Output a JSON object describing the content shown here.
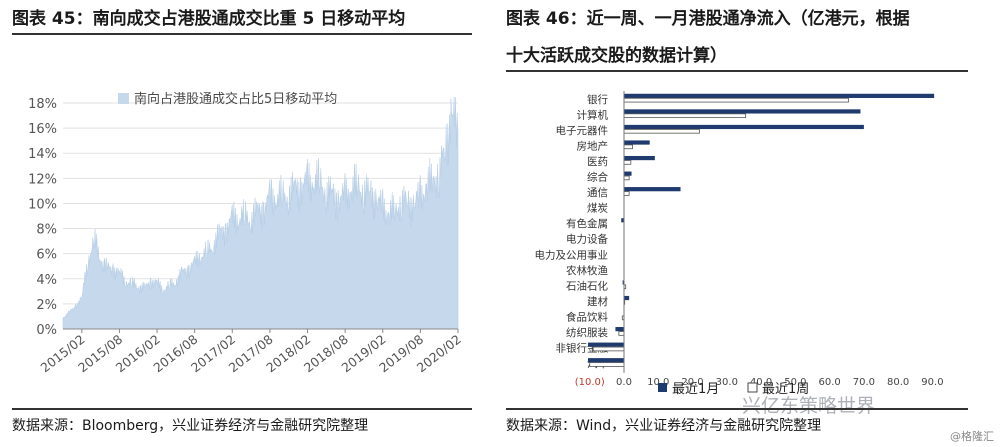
{
  "left": {
    "title": "图表 45：南向成交占港股通成交比重 5 日移动平均",
    "source": "数据来源：Bloomberg，兴业证券经济与金融研究院整理"
  },
  "right": {
    "title_line1": "图表 46：近一周、一月港股通净流入（亿港元，根据",
    "title_line2": "十大活跃成交股的数据计算）",
    "source": "数据来源：Wind，兴业证券经济与金融研究院整理"
  },
  "watermark": "兴亿东策略世界",
  "watermark2": "@格隆汇",
  "chart_data": [
    {
      "type": "area",
      "legend": "南向占港股通成交占比5日移动平均",
      "ylim": [
        0,
        18
      ],
      "y_ticks": [
        "0%",
        "2%",
        "4%",
        "6%",
        "8%",
        "10%",
        "12%",
        "14%",
        "16%",
        "18%"
      ],
      "x_ticks": [
        "2015/02",
        "2015/08",
        "2016/02",
        "2016/08",
        "2017/02",
        "2017/08",
        "2018/02",
        "2018/08",
        "2019/02",
        "2019/08",
        "2020/02"
      ],
      "series_color": "#c5d8ec",
      "approx_monthly": [
        {
          "x": "2014/11",
          "y": 0.9
        },
        {
          "x": "2014/12",
          "y": 1.3
        },
        {
          "x": "2015/01",
          "y": 1.8
        },
        {
          "x": "2015/02",
          "y": 2.5
        },
        {
          "x": "2015/03",
          "y": 5.5
        },
        {
          "x": "2015/04",
          "y": 7.1
        },
        {
          "x": "2015/05",
          "y": 5.5
        },
        {
          "x": "2015/06",
          "y": 4.8
        },
        {
          "x": "2015/07",
          "y": 4.8
        },
        {
          "x": "2015/08",
          "y": 4.4
        },
        {
          "x": "2015/09",
          "y": 3.8
        },
        {
          "x": "2015/10",
          "y": 3.6
        },
        {
          "x": "2015/11",
          "y": 3.4
        },
        {
          "x": "2015/12",
          "y": 3.2
        },
        {
          "x": "2016/01",
          "y": 3.8
        },
        {
          "x": "2016/02",
          "y": 3.6
        },
        {
          "x": "2016/03",
          "y": 3.2
        },
        {
          "x": "2016/04",
          "y": 3.4
        },
        {
          "x": "2016/05",
          "y": 3.8
        },
        {
          "x": "2016/06",
          "y": 4.4
        },
        {
          "x": "2016/07",
          "y": 4.8
        },
        {
          "x": "2016/08",
          "y": 5.2
        },
        {
          "x": "2016/09",
          "y": 6.0
        },
        {
          "x": "2016/10",
          "y": 6.0
        },
        {
          "x": "2016/11",
          "y": 6.8
        },
        {
          "x": "2016/12",
          "y": 7.5
        },
        {
          "x": "2017/01",
          "y": 8.0
        },
        {
          "x": "2017/02",
          "y": 8.7
        },
        {
          "x": "2017/03",
          "y": 9.0
        },
        {
          "x": "2017/04",
          "y": 8.8
        },
        {
          "x": "2017/05",
          "y": 8.9
        },
        {
          "x": "2017/06",
          "y": 9.2
        },
        {
          "x": "2017/07",
          "y": 9.6
        },
        {
          "x": "2017/08",
          "y": 10.3
        },
        {
          "x": "2017/09",
          "y": 10.6
        },
        {
          "x": "2017/10",
          "y": 10.4
        },
        {
          "x": "2017/11",
          "y": 10.8
        },
        {
          "x": "2017/12",
          "y": 11.0
        },
        {
          "x": "2018/01",
          "y": 11.3
        },
        {
          "x": "2018/02",
          "y": 11.6
        },
        {
          "x": "2018/03",
          "y": 11.8
        },
        {
          "x": "2018/04",
          "y": 11.6
        },
        {
          "x": "2018/05",
          "y": 11.0
        },
        {
          "x": "2018/06",
          "y": 10.6
        },
        {
          "x": "2018/07",
          "y": 10.2
        },
        {
          "x": "2018/08",
          "y": 10.6
        },
        {
          "x": "2018/09",
          "y": 11.2
        },
        {
          "x": "2018/10",
          "y": 11.4
        },
        {
          "x": "2018/11",
          "y": 11.0
        },
        {
          "x": "2018/12",
          "y": 10.8
        },
        {
          "x": "2019/01",
          "y": 10.2
        },
        {
          "x": "2019/02",
          "y": 9.6
        },
        {
          "x": "2019/03",
          "y": 9.2
        },
        {
          "x": "2019/04",
          "y": 9.4
        },
        {
          "x": "2019/05",
          "y": 10.2
        },
        {
          "x": "2019/06",
          "y": 10.0
        },
        {
          "x": "2019/07",
          "y": 9.8
        },
        {
          "x": "2019/08",
          "y": 10.6
        },
        {
          "x": "2019/09",
          "y": 11.2
        },
        {
          "x": "2019/10",
          "y": 12.0
        },
        {
          "x": "2019/11",
          "y": 12.2
        },
        {
          "x": "2019/12",
          "y": 14.5
        },
        {
          "x": "2020/01",
          "y": 17.2
        },
        {
          "x": "2020/02",
          "y": 15.6
        }
      ]
    },
    {
      "type": "bar",
      "orientation": "horizontal",
      "categories": [
        "银行",
        "计算机",
        "电子元器件",
        "房地产",
        "医药",
        "综合",
        "通信",
        "煤炭",
        "有色金属",
        "电力设备",
        "电力及公用事业",
        "农林牧渔",
        "石油石化",
        "建材",
        "食品饮料",
        "纺织服装",
        "非银行金融",
        "汽车"
      ],
      "series": [
        {
          "name": "最近1月",
          "color": "#1f3a6e",
          "values": [
            90.5,
            69.0,
            70.0,
            7.5,
            9.0,
            2.2,
            16.5,
            0.0,
            -0.8,
            0.0,
            0.0,
            0.0,
            -0.4,
            1.5,
            0.0,
            -2.5,
            -10.5,
            -10.5
          ]
        },
        {
          "name": "最近1周",
          "color": "#ffffff",
          "values": [
            65.5,
            35.5,
            22.0,
            2.5,
            2.0,
            1.5,
            1.5,
            0.0,
            0.0,
            0.0,
            0.0,
            0.0,
            0.5,
            0.2,
            -0.5,
            -1.5,
            -9.0,
            -10.0
          ]
        }
      ],
      "xlim": [
        -10,
        90
      ],
      "x_ticks": [
        "(10.0)",
        "0.0",
        "10.0",
        "20.0",
        "30.0",
        "40.0",
        "50.0",
        "60.0",
        "70.0",
        "80.0",
        "90.0"
      ],
      "legend": "bottom"
    }
  ]
}
